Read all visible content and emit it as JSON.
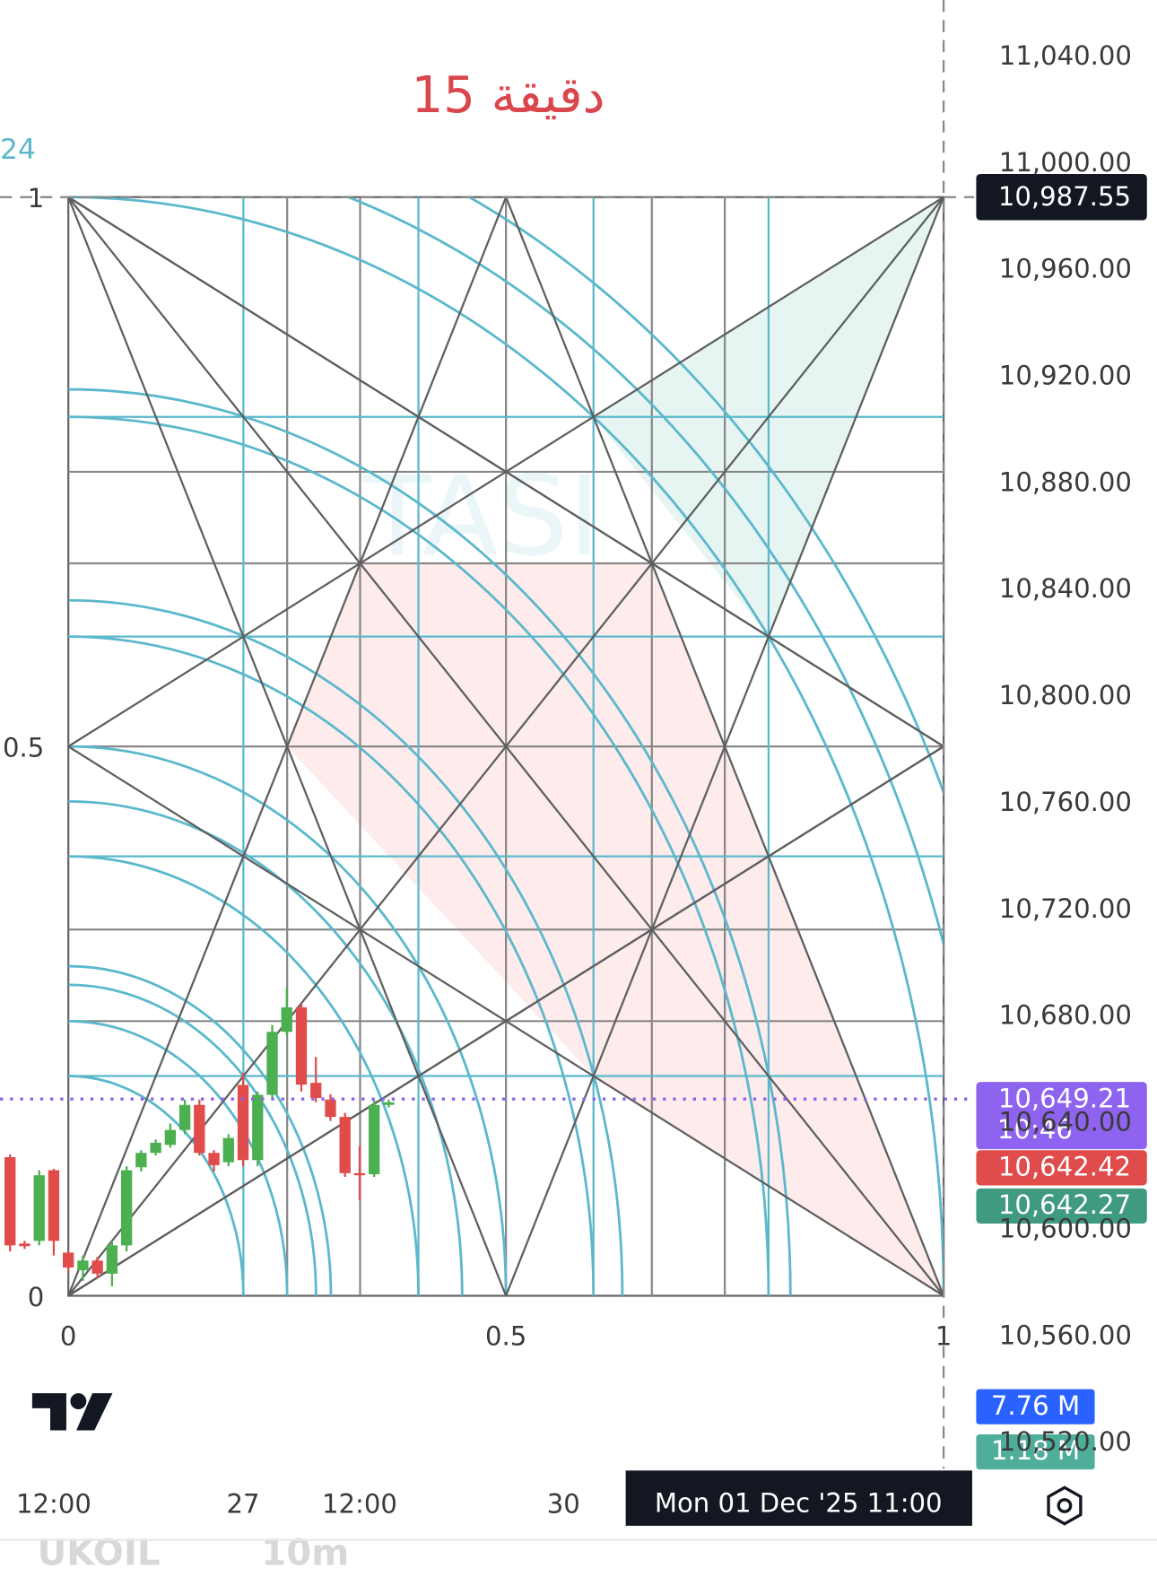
{
  "chart_data": {
    "type": "candlestick",
    "title": "دقيقة 15",
    "watermark": "TASI",
    "left_cutoff_label": "24",
    "symbol": "UKOIL",
    "interval": "10m",
    "ylim": [
      10469.9,
      11061.5
    ],
    "yticks": [
      {
        "value": 10520,
        "label": "10,520.00"
      },
      {
        "value": 10560,
        "label": "10,560.00"
      },
      {
        "value": 10600,
        "label": "10,600.00"
      },
      {
        "value": 10640,
        "label": "10,640.00"
      },
      {
        "value": 10680,
        "label": "10,680.00"
      },
      {
        "value": 10720,
        "label": "10,720.00"
      },
      {
        "value": 10760,
        "label": "10,760.00"
      },
      {
        "value": 10800,
        "label": "10,800.00"
      },
      {
        "value": 10840,
        "label": "10,840.00"
      },
      {
        "value": 10880,
        "label": "10,880.00"
      },
      {
        "value": 10920,
        "label": "10,920.00"
      },
      {
        "value": 10960,
        "label": "10,960.00"
      },
      {
        "value": 11000,
        "label": "11,000.00"
      },
      {
        "value": 11040,
        "label": "11,040.00"
      }
    ],
    "xlim": [
      -0.69,
      66.2
    ],
    "xticks": [
      {
        "value": 3,
        "label": "12:00"
      },
      {
        "value": 16,
        "label": "27"
      },
      {
        "value": 24,
        "label": "12:00"
      },
      {
        "value": 38,
        "label": "30"
      }
    ],
    "up_color": "#4caf50",
    "down_color": "#e04b4b",
    "candles": {
      "open": [
        10627.4,
        10595,
        10596,
        10622.5,
        10591.6,
        10585,
        10588.6,
        10583.7,
        10594.3,
        10623.6,
        10629,
        10632,
        10637.6,
        10647,
        10629,
        10625.5,
        10654.5,
        10626.3,
        10650.8,
        10674.4,
        10683.6,
        10655.3,
        10649,
        10642.5,
        10621.4,
        10621,
        10647
      ],
      "high": [
        10628.5,
        10596,
        10622.5,
        10623,
        10592,
        10590.5,
        10590,
        10596,
        10624,
        10630,
        10634,
        10640,
        10649,
        10649,
        10630,
        10636,
        10659,
        10652,
        10677,
        10691,
        10685,
        10665,
        10651,
        10644,
        10631.6,
        10649,
        10649
      ],
      "low": [
        10592,
        10593,
        10594.3,
        10590.5,
        10584,
        10581,
        10582,
        10579,
        10592,
        10622,
        10628,
        10631,
        10636,
        10628,
        10622,
        10624,
        10624,
        10624,
        10649,
        10673,
        10652,
        10648,
        10641,
        10620,
        10611.2,
        10620,
        10646
      ],
      "close": [
        10594.3,
        10594,
        10620.6,
        10596,
        10586,
        10588.6,
        10583.7,
        10594.3,
        10622.5,
        10629,
        10632.8,
        10637.6,
        10647,
        10629,
        10624.4,
        10634.6,
        10626.3,
        10650.8,
        10674.4,
        10683.6,
        10654.6,
        10649.6,
        10642.5,
        10621.4,
        10620.6,
        10647,
        10648
      ]
    },
    "gann_box": {
      "time_range": [
        4,
        64.1
      ],
      "price_range": [
        10575.4,
        10987.55
      ],
      "levels_x": [
        0,
        0.5,
        1
      ],
      "levels_y": [
        0,
        0.5,
        1
      ]
    },
    "current_price": {
      "value": 10649.21,
      "label": "10,649.21",
      "countdown": "10:46",
      "color": "#8e63f0"
    },
    "price_badges": [
      {
        "value": 10642.42,
        "label": "10,642.42",
        "color": "#e04b4b"
      },
      {
        "value": 10642.27,
        "label": "10,642.27",
        "color": "#3f9a80"
      }
    ],
    "volume_badges": [
      {
        "label": "7.76 M",
        "color": "#2962ff"
      },
      {
        "label": "1.18 M",
        "color": "#4fae9a"
      }
    ],
    "crosshair": {
      "price": 10987.55,
      "price_label": "10,987.55",
      "time": 64.1,
      "time_label": "Mon 01 Dec '25   11:00"
    }
  }
}
